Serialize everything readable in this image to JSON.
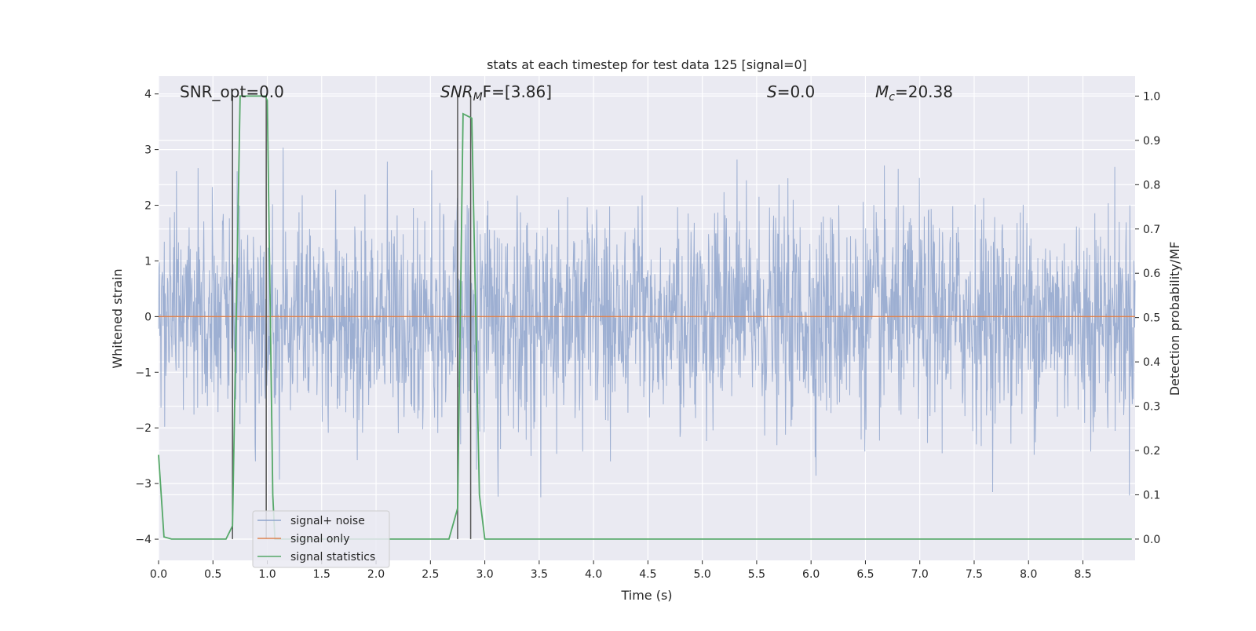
{
  "chart_data": {
    "type": "line",
    "title": "stats at each timestep for test data 125 [signal=0]",
    "xlabel": "Time (s)",
    "ylabel": "Whitened strain",
    "y2label": "Detection probability/MF",
    "xlim": [
      0.0,
      8.98
    ],
    "ylim": [
      -4.38,
      4.32
    ],
    "y2lim": [
      -0.048,
      1.045
    ],
    "xticks": [
      "0.0",
      "0.5",
      "1.0",
      "1.5",
      "2.0",
      "2.5",
      "3.0",
      "3.5",
      "4.0",
      "4.5",
      "5.0",
      "5.5",
      "6.0",
      "6.5",
      "7.0",
      "7.5",
      "8.0",
      "8.5"
    ],
    "yticks": [
      "4",
      "3",
      "2",
      "1",
      "0",
      "−1",
      "−2",
      "−3",
      "−4"
    ],
    "y2ticks": [
      "1.0",
      "0.9",
      "0.8",
      "0.7",
      "0.6",
      "0.5",
      "0.4",
      "0.3",
      "0.2",
      "0.1",
      "0.0"
    ],
    "grid": true,
    "legend_position": "lower-left",
    "annotations": {
      "snr_opt": "SNR_opt=0.0",
      "snr_mf_prefix": "SNR",
      "snr_mf_sub": "M",
      "snr_mf_suffix": "F=[3.86]",
      "s_symbol": "S",
      "s_value": "=0.0",
      "mc_symbol": "M",
      "mc_sub": "c",
      "mc_value": "=20.38"
    },
    "series": [
      {
        "name": "signal+ noise",
        "color": "#8fa4cc",
        "description": "whitened noisy strain, dense oscillation roughly within ±2 with spikes to about ±3.5",
        "envelope": {
          "typical": 2.0,
          "max_positive": 3.9,
          "max_negative": -4.0
        }
      },
      {
        "name": "signal only",
        "color": "#dd8452",
        "values_constant": 0.0
      },
      {
        "name": "signal statistics",
        "color": "#55a868",
        "axis": "right",
        "x": [
          0.0,
          0.05,
          0.12,
          0.62,
          0.68,
          0.75,
          0.78,
          0.98,
          1.0,
          1.05,
          1.07,
          2.67,
          2.75,
          2.8,
          2.88,
          2.95,
          3.0,
          8.95
        ],
        "y": [
          0.19,
          0.005,
          0.0,
          0.0,
          0.03,
          1.0,
          1.0,
          1.0,
          0.99,
          0.1,
          0.0,
          0.0,
          0.07,
          0.96,
          0.95,
          0.1,
          0.0,
          0.0
        ]
      }
    ],
    "vertical_markers": [
      0.68,
      0.99,
      2.75,
      2.87
    ]
  }
}
